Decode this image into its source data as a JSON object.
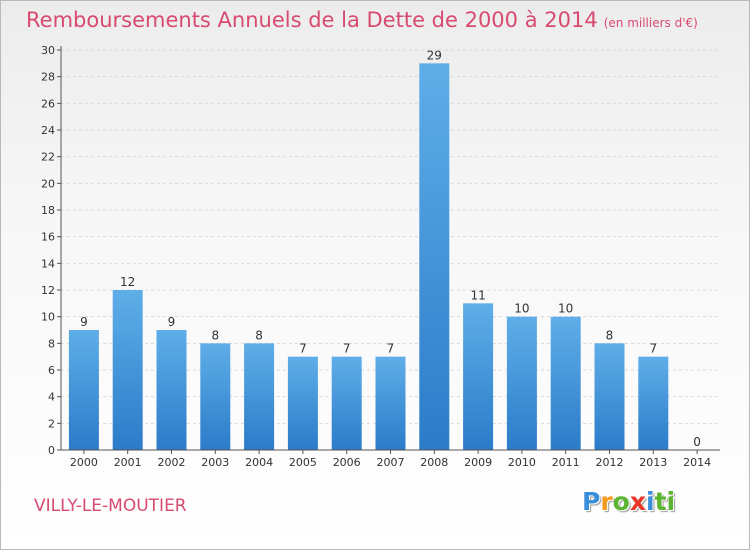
{
  "title": "Remboursements Annuels de la Dette de 2000 à 2014",
  "unit_note": "(en milliers d'€)",
  "town": "VILLY-LE-MOUTIER",
  "logo_letters": [
    "P",
    "r",
    "o",
    "x",
    "i",
    "ti"
  ],
  "colors": {
    "title": "#d84a6f",
    "bar_light": "#5faee8",
    "bar_dark": "#2b7bc9",
    "axis": "#555555",
    "grid": "#d9d9d9"
  },
  "chart_data": {
    "type": "bar",
    "categories": [
      "2000",
      "2001",
      "2002",
      "2003",
      "2004",
      "2005",
      "2006",
      "2007",
      "2008",
      "2009",
      "2010",
      "2011",
      "2012",
      "2013",
      "2014"
    ],
    "values": [
      9,
      12,
      9,
      8,
      8,
      7,
      7,
      7,
      29,
      11,
      10,
      10,
      8,
      7,
      0
    ],
    "ylim": [
      0,
      30
    ],
    "yticks": [
      0,
      2,
      4,
      6,
      8,
      10,
      12,
      14,
      16,
      18,
      20,
      22,
      24,
      26,
      28,
      30
    ],
    "grid": true,
    "legend": "none"
  }
}
